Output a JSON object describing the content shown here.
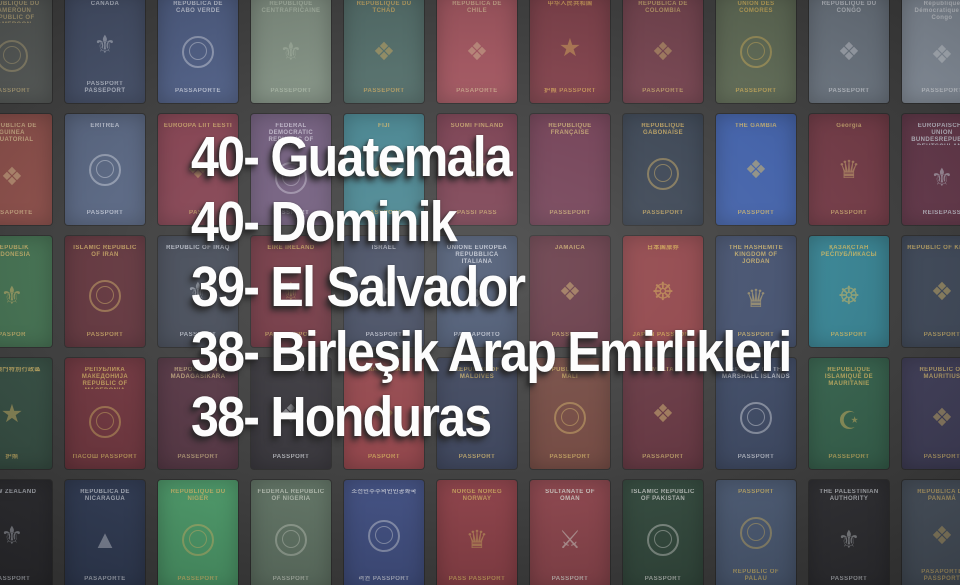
{
  "overlay": {
    "text_color": "#fdfdfd",
    "ranking": [
      {
        "rank": "40",
        "country": "Guatemala",
        "text": "40- Guatemala"
      },
      {
        "rank": "40",
        "country": "Dominik",
        "text": "40- Dominik"
      },
      {
        "rank": "39",
        "country": "El Salvador",
        "text": "39- El Salvador"
      },
      {
        "rank": "38",
        "country": "Birleşik Arap Emirlikleri",
        "text": "38- Birleşik Arap Emirlikleri"
      },
      {
        "rank": "38",
        "country": "Honduras",
        "text": "38- Honduras"
      }
    ]
  },
  "collage": {
    "gap_color": "#3a3a3a",
    "rows": [
      [
        {
          "name": "cameroon",
          "color": "#565a58",
          "ink": "#b9a87a",
          "glyph": "ring",
          "title": "REPUBLIQUE DU CAMEROUN REPUBLIC OF CAMEROON",
          "footer": "PASSPORT"
        },
        {
          "name": "canada",
          "color": "#434e68",
          "ink": "#c6ccd8",
          "glyph": "⚜",
          "title": "CANADA",
          "footer": "PASSPORT PASSEPORT"
        },
        {
          "name": "cape-verde",
          "color": "#4d5d85",
          "ink": "#cdd2e0",
          "glyph": "ring",
          "title": "REPÚBLICA DE CABO VERDE",
          "footer": "PASSAPORTE"
        },
        {
          "name": "central-african-republic",
          "color": "#7e8d7f",
          "ink": "#a9b6a5",
          "glyph": "⚜",
          "title": "REPUBLIQUE CENTRAFRICAINE",
          "footer": "PASSEPORT"
        },
        {
          "name": "chad",
          "color": "#4f6a66",
          "ink": "#c3a35c",
          "glyph": "❖",
          "title": "REPUBLIQUE DU TCHAD",
          "footer": "PASSEPORT"
        },
        {
          "name": "chile",
          "color": "#9d505a",
          "ink": "#c9a98a",
          "glyph": "❖",
          "title": "REPUBLICA DE CHILE",
          "footer": "PASAPORTE"
        },
        {
          "name": "china",
          "color": "#7c3c46",
          "ink": "#cf9f56",
          "glyph": "★",
          "title": "中华人民共和国",
          "footer": "护照 PASSPORT"
        },
        {
          "name": "colombia",
          "color": "#73404c",
          "ink": "#c4a56a",
          "glyph": "❖",
          "title": "REPÚBLICA DE COLOMBIA",
          "footer": "PASAPORTE"
        },
        {
          "name": "comoros",
          "color": "#5e6a54",
          "ink": "#cfae58",
          "glyph": "ring",
          "title": "UNION DES COMORES",
          "footer": "PASSEPORT"
        },
        {
          "name": "congo",
          "color": "#6e7884",
          "ink": "#c9cdd4",
          "glyph": "❖",
          "title": "REPUBLIQUE DU CONGO",
          "footer": "PASSEPORT"
        },
        {
          "name": "dr-congo",
          "color": "#8b95a2",
          "ink": "#d3d7dd",
          "glyph": "❖",
          "title": "République Démocratique du Congo",
          "footer": "PASSEPORT"
        }
      ],
      [
        {
          "name": "equatorial-guinea",
          "color": "#8c4c47",
          "ink": "#d0b489",
          "glyph": "❖",
          "title": "REPUBLICA DE GUINEA ECUATORIAL",
          "footer": "PASAPORTE"
        },
        {
          "name": "eritrea",
          "color": "#55637f",
          "ink": "#c8cdda",
          "glyph": "ring",
          "title": "ERITREA",
          "footer": "PASSPORT"
        },
        {
          "name": "estonia",
          "color": "#813e4d",
          "ink": "#caa86a",
          "glyph": "❖",
          "title": "EUROOPA LIIT EESTI",
          "footer": "PASS"
        },
        {
          "name": "ethiopia",
          "color": "#6d5879",
          "ink": "#c6bfd0",
          "glyph": "ring",
          "title": "FEDERAL DEMOCRATIC REPUBLIC OF ETHIOPIA",
          "footer": "PASSPORT"
        },
        {
          "name": "fiji",
          "color": "#41808c",
          "ink": "#d2b564",
          "glyph": "❖",
          "title": "FIJI",
          "footer": "PASSPORT"
        },
        {
          "name": "finland",
          "color": "#76394b",
          "ink": "#c9a66b",
          "glyph": "♛",
          "title": "SUOMI FINLAND",
          "footer": "PASSI PASS"
        },
        {
          "name": "france",
          "color": "#6e3a50",
          "ink": "#c9ac72",
          "glyph": "none",
          "title": "RÉPUBLIQUE FRANÇAISE",
          "footer": "PASSEPORT"
        },
        {
          "name": "gabon",
          "color": "#36404f",
          "ink": "#c8a960",
          "glyph": "ring",
          "title": "REPUBLIQUE GABONAISE",
          "footer": "PASSEPORT"
        },
        {
          "name": "gambia",
          "color": "#3d5da6",
          "ink": "#d0b568",
          "glyph": "❖",
          "title": "THE GAMBIA",
          "footer": "PASSPORT"
        },
        {
          "name": "georgia",
          "color": "#703642",
          "ink": "#cbaa6e",
          "glyph": "♛",
          "title": "Georgia",
          "footer": "PASSPORT"
        },
        {
          "name": "germany",
          "color": "#633548",
          "ink": "#c8ccd6",
          "glyph": "⚜",
          "title": "EUROPÄISCHE UNION BUNDESREPUBLIK DEUTSCHLAND",
          "footer": "REISEPASS"
        }
      ],
      [
        {
          "name": "indonesia",
          "color": "#41704f",
          "ink": "#cdb269",
          "glyph": "⚜",
          "title": "REPUBLIK INDONESIA",
          "footer": "PASPOR"
        },
        {
          "name": "iran",
          "color": "#5f323a",
          "ink": "#c9a863",
          "glyph": "ring",
          "title": "ISLAMIC REPUBLIC OF IRAN",
          "footer": "PASSPORT"
        },
        {
          "name": "iraq",
          "color": "#414754",
          "ink": "#c3c8d2",
          "glyph": "⚜",
          "title": "REPUBLIC OF IRAQ",
          "footer": "PASSPORT"
        },
        {
          "name": "ireland",
          "color": "#6d303c",
          "ink": "#c9a75f",
          "glyph": "⚜",
          "title": "EIRE IRELAND",
          "footer": "PAS PASSPORT"
        },
        {
          "name": "israel",
          "color": "#3c445a",
          "ink": "#c6cad6",
          "glyph": "✶",
          "title": "ISRAEL",
          "footer": "PASSPORT"
        },
        {
          "name": "italy",
          "color": "#42506b",
          "ink": "#ccd1dc",
          "glyph": "❖",
          "title": "UNIONE EUROPEA REPUBBLICA ITALIANA",
          "footer": "PASSAPORTO"
        },
        {
          "name": "jamaica",
          "color": "#613340",
          "ink": "#caa96a",
          "glyph": "❖",
          "title": "JAMAICA",
          "footer": "PASSPORT"
        },
        {
          "name": "japan",
          "color": "#8d3f44",
          "ink": "#d3ab52",
          "glyph": "☸",
          "title": "日本国旅券",
          "footer": "JAPAN PASSPORT"
        },
        {
          "name": "jordan",
          "color": "#3f4c6a",
          "ink": "#ccb26a",
          "glyph": "♛",
          "title": "THE HASHEMITE KINGDOM OF JORDAN",
          "footer": "PASSPORT"
        },
        {
          "name": "kazakhstan",
          "color": "#338090",
          "ink": "#d2b85e",
          "glyph": "☸",
          "title": "ҚАЗАҚСТАН РЕСПУБЛИКАСЫ",
          "footer": "PASSPORT"
        },
        {
          "name": "kenya",
          "color": "#3d4758",
          "ink": "#c9ad64",
          "glyph": "❖",
          "title": "REPUBLIC OF KENYA",
          "footer": "PASSPORT"
        }
      ],
      [
        {
          "name": "macau",
          "color": "#334d41",
          "ink": "#cdb163",
          "glyph": "★",
          "title": "中國澳門特別行政區",
          "footer": "护照"
        },
        {
          "name": "macedonia",
          "color": "#6e323b",
          "ink": "#cbaa5e",
          "glyph": "ring",
          "title": "РЕПУБЛИКА МАКЕДОНИЈА REPUBLIC OF MACEDONIA",
          "footer": "ПАСОШ PASSPORT"
        },
        {
          "name": "madagascar",
          "color": "#523240",
          "ink": "#c2a97e",
          "glyph": "none",
          "title": "REPOBLIKAN'I MADAGASIKARA",
          "footer": "PASSEPORT"
        },
        {
          "name": "malawi",
          "color": "#323036",
          "ink": "#c6c9ce",
          "glyph": "❖",
          "title": "MALAWI",
          "footer": "PASSPORT"
        },
        {
          "name": "malaysia",
          "color": "#8e3e44",
          "ink": "#d0ac58",
          "glyph": "❖",
          "title": "MALAYSIA",
          "footer": "PASPORT"
        },
        {
          "name": "maldives",
          "color": "#363e56",
          "ink": "#ccb168",
          "glyph": "☪",
          "title": "REPUBLIC OF MALDIVES",
          "footer": "PASSPORT"
        },
        {
          "name": "mali",
          "color": "#6f443c",
          "ink": "#cbab62",
          "glyph": "ring",
          "title": "REPUBLIQUE DU MALI",
          "footer": "PASSEPORT"
        },
        {
          "name": "malta",
          "color": "#61313c",
          "ink": "#c9ac6c",
          "glyph": "❖",
          "title": "MALTA",
          "footer": "PASSAPORT"
        },
        {
          "name": "marshall-islands",
          "color": "#394560",
          "ink": "#c9cdd6",
          "glyph": "ring",
          "title": "REPUBLIC OF THE MARSHALL ISLANDS",
          "footer": "PASSPORT"
        },
        {
          "name": "mauritania",
          "color": "#32604a",
          "ink": "#cdb25e",
          "glyph": "☪",
          "title": "REPUBLIQUE ISLAMIQUE DE MAURITANIE",
          "footer": "PASSEPORT"
        },
        {
          "name": "mauritius",
          "color": "#3e3c58",
          "ink": "#cbb06a",
          "glyph": "❖",
          "title": "REPUBLIC OF MAURITIUS",
          "footer": "PASSPORT"
        }
      ],
      [
        {
          "name": "new-zealand",
          "color": "#2a2a2e",
          "ink": "#c0c4cc",
          "glyph": "⚜",
          "title": "NEW ZEALAND",
          "footer": "PASSPORT"
        },
        {
          "name": "nicaragua",
          "color": "#303c57",
          "ink": "#c8cdd8",
          "glyph": "▲",
          "title": "REPUBLICA DE NICARAGUA",
          "footer": "PASAPORTE"
        },
        {
          "name": "niger",
          "color": "#4da06c",
          "ink": "#d4bc6a",
          "glyph": "ring",
          "title": "REPUBLIQUE DU NIGER",
          "footer": "PASSEPORT"
        },
        {
          "name": "nigeria",
          "color": "#617565",
          "ink": "#c2cabd",
          "glyph": "ring",
          "title": "FEDERAL REPUBLIC OF NIGERIA",
          "footer": "PASSPORT"
        },
        {
          "name": "north-korea",
          "color": "#3e4d82",
          "ink": "#ccd0dc",
          "glyph": "ring",
          "title": "조선민주주의인민공화국",
          "footer": "려권 PASSPORT"
        },
        {
          "name": "norway",
          "color": "#8e3e46",
          "ink": "#d0ab5e",
          "glyph": "♛",
          "title": "NORGE NOREG NORWAY",
          "footer": "PASS PASSPORT"
        },
        {
          "name": "oman",
          "color": "#8e434b",
          "ink": "#d8d9d2",
          "glyph": "⚔",
          "title": "SULTANATE OF OMAN",
          "footer": "PASSPORT"
        },
        {
          "name": "pakistan",
          "color": "#31493c",
          "ink": "#cdd0cc",
          "glyph": "ring",
          "title": "ISLAMIC REPUBLIC OF PAKISTAN",
          "footer": "PASSPORT"
        },
        {
          "name": "palau",
          "color": "#4d5d78",
          "ink": "#d0b668",
          "glyph": "ring",
          "title": "PASSPORT",
          "footer": "REPUBLIC OF PALAU"
        },
        {
          "name": "palestine",
          "color": "#2e2e32",
          "ink": "#c6c9ce",
          "glyph": "⚜",
          "title": "THE PALESTINIAN AUTHORITY",
          "footer": "PASSPORT"
        },
        {
          "name": "panama",
          "color": "#4b5562",
          "ink": "#c9ad6a",
          "glyph": "❖",
          "title": "REPÚBLICA DE PANAMÁ",
          "footer": "PASAPORTE PASSPORT"
        }
      ]
    ]
  }
}
